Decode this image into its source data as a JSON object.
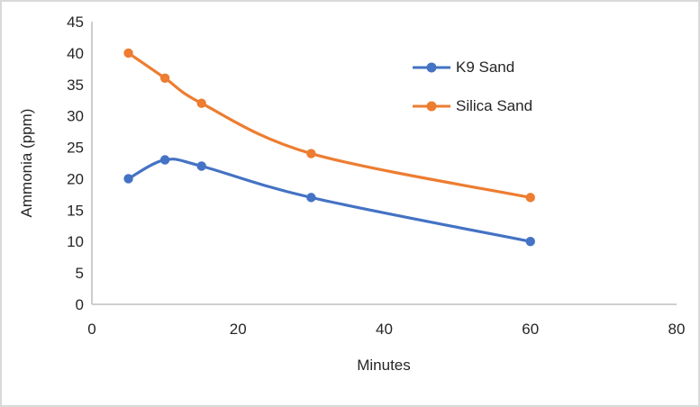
{
  "chart_data": {
    "type": "line",
    "title": "",
    "xlabel": "Minutes",
    "ylabel": "Ammonia (ppm)",
    "xlim": [
      0,
      80
    ],
    "ylim": [
      0,
      45
    ],
    "x_ticks": [
      0,
      20,
      40,
      60,
      80
    ],
    "y_ticks": [
      0,
      5,
      10,
      15,
      20,
      25,
      30,
      35,
      40,
      45
    ],
    "grid": false,
    "smooth_lines": true,
    "legend_position": "inside-top-right",
    "axis_color": "#BFBFBF",
    "text_color": "#262626",
    "frame_border_color": "#D9D9D9",
    "x": [
      5,
      10,
      15,
      30,
      60
    ],
    "series": [
      {
        "name": "K9 Sand",
        "color": "#4472C4",
        "values": [
          20,
          23,
          22,
          17,
          10
        ]
      },
      {
        "name": "Silica Sand",
        "color": "#ED7D31",
        "values": [
          40,
          36,
          32,
          24,
          17
        ]
      }
    ]
  }
}
